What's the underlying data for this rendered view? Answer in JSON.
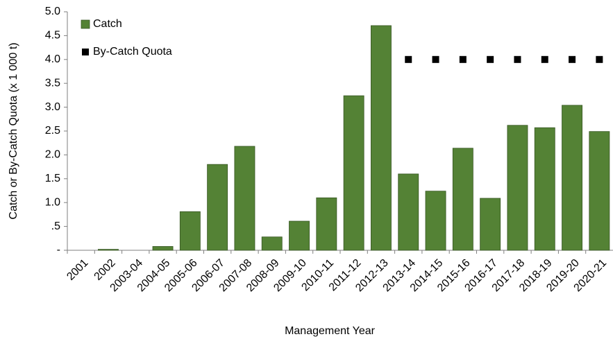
{
  "chart_data": {
    "type": "bar",
    "x_label": "Management Year",
    "y_label": "Catch or By-Catch Quota (x 1 000 t)",
    "categories": [
      "2001",
      "2002",
      "2003-04",
      "2004-05",
      "2005-06",
      "2006-07",
      "2007-08",
      "2008-09",
      "2009-10",
      "2010-11",
      "2011-12",
      "2012-13",
      "2013-14",
      "2014-15",
      "2015-16",
      "2016-17",
      "2017-18",
      "2018-19",
      "2019-20",
      "2020-21"
    ],
    "series": [
      {
        "name": "Catch",
        "type": "bar",
        "color": "#548235",
        "values": [
          0,
          0.02,
          0,
          0.08,
          0.81,
          1.8,
          2.18,
          0.28,
          0.61,
          1.1,
          3.24,
          4.71,
          1.6,
          1.24,
          2.14,
          1.09,
          2.62,
          2.57,
          3.04,
          2.49
        ]
      },
      {
        "name": "By-Catch Quota",
        "type": "marker",
        "color": "#000000",
        "values": [
          null,
          null,
          null,
          null,
          null,
          null,
          null,
          null,
          null,
          null,
          null,
          null,
          4,
          4,
          4,
          4,
          4,
          4,
          4,
          4
        ]
      }
    ],
    "ylim": [
      0,
      5
    ],
    "yticks": [
      {
        "value": 0,
        "label": "-"
      },
      {
        "value": 0.5,
        "label": ".5"
      },
      {
        "value": 1,
        "label": "1.0"
      },
      1.5,
      {
        "value": 2,
        "label": "2.0"
      },
      2.5,
      {
        "value": 3,
        "label": "3.0"
      },
      3.5,
      {
        "value": 4,
        "label": "4.0"
      },
      4.5,
      {
        "value": 5,
        "label": "5.0"
      }
    ],
    "grid": false,
    "legend": "top-left"
  }
}
